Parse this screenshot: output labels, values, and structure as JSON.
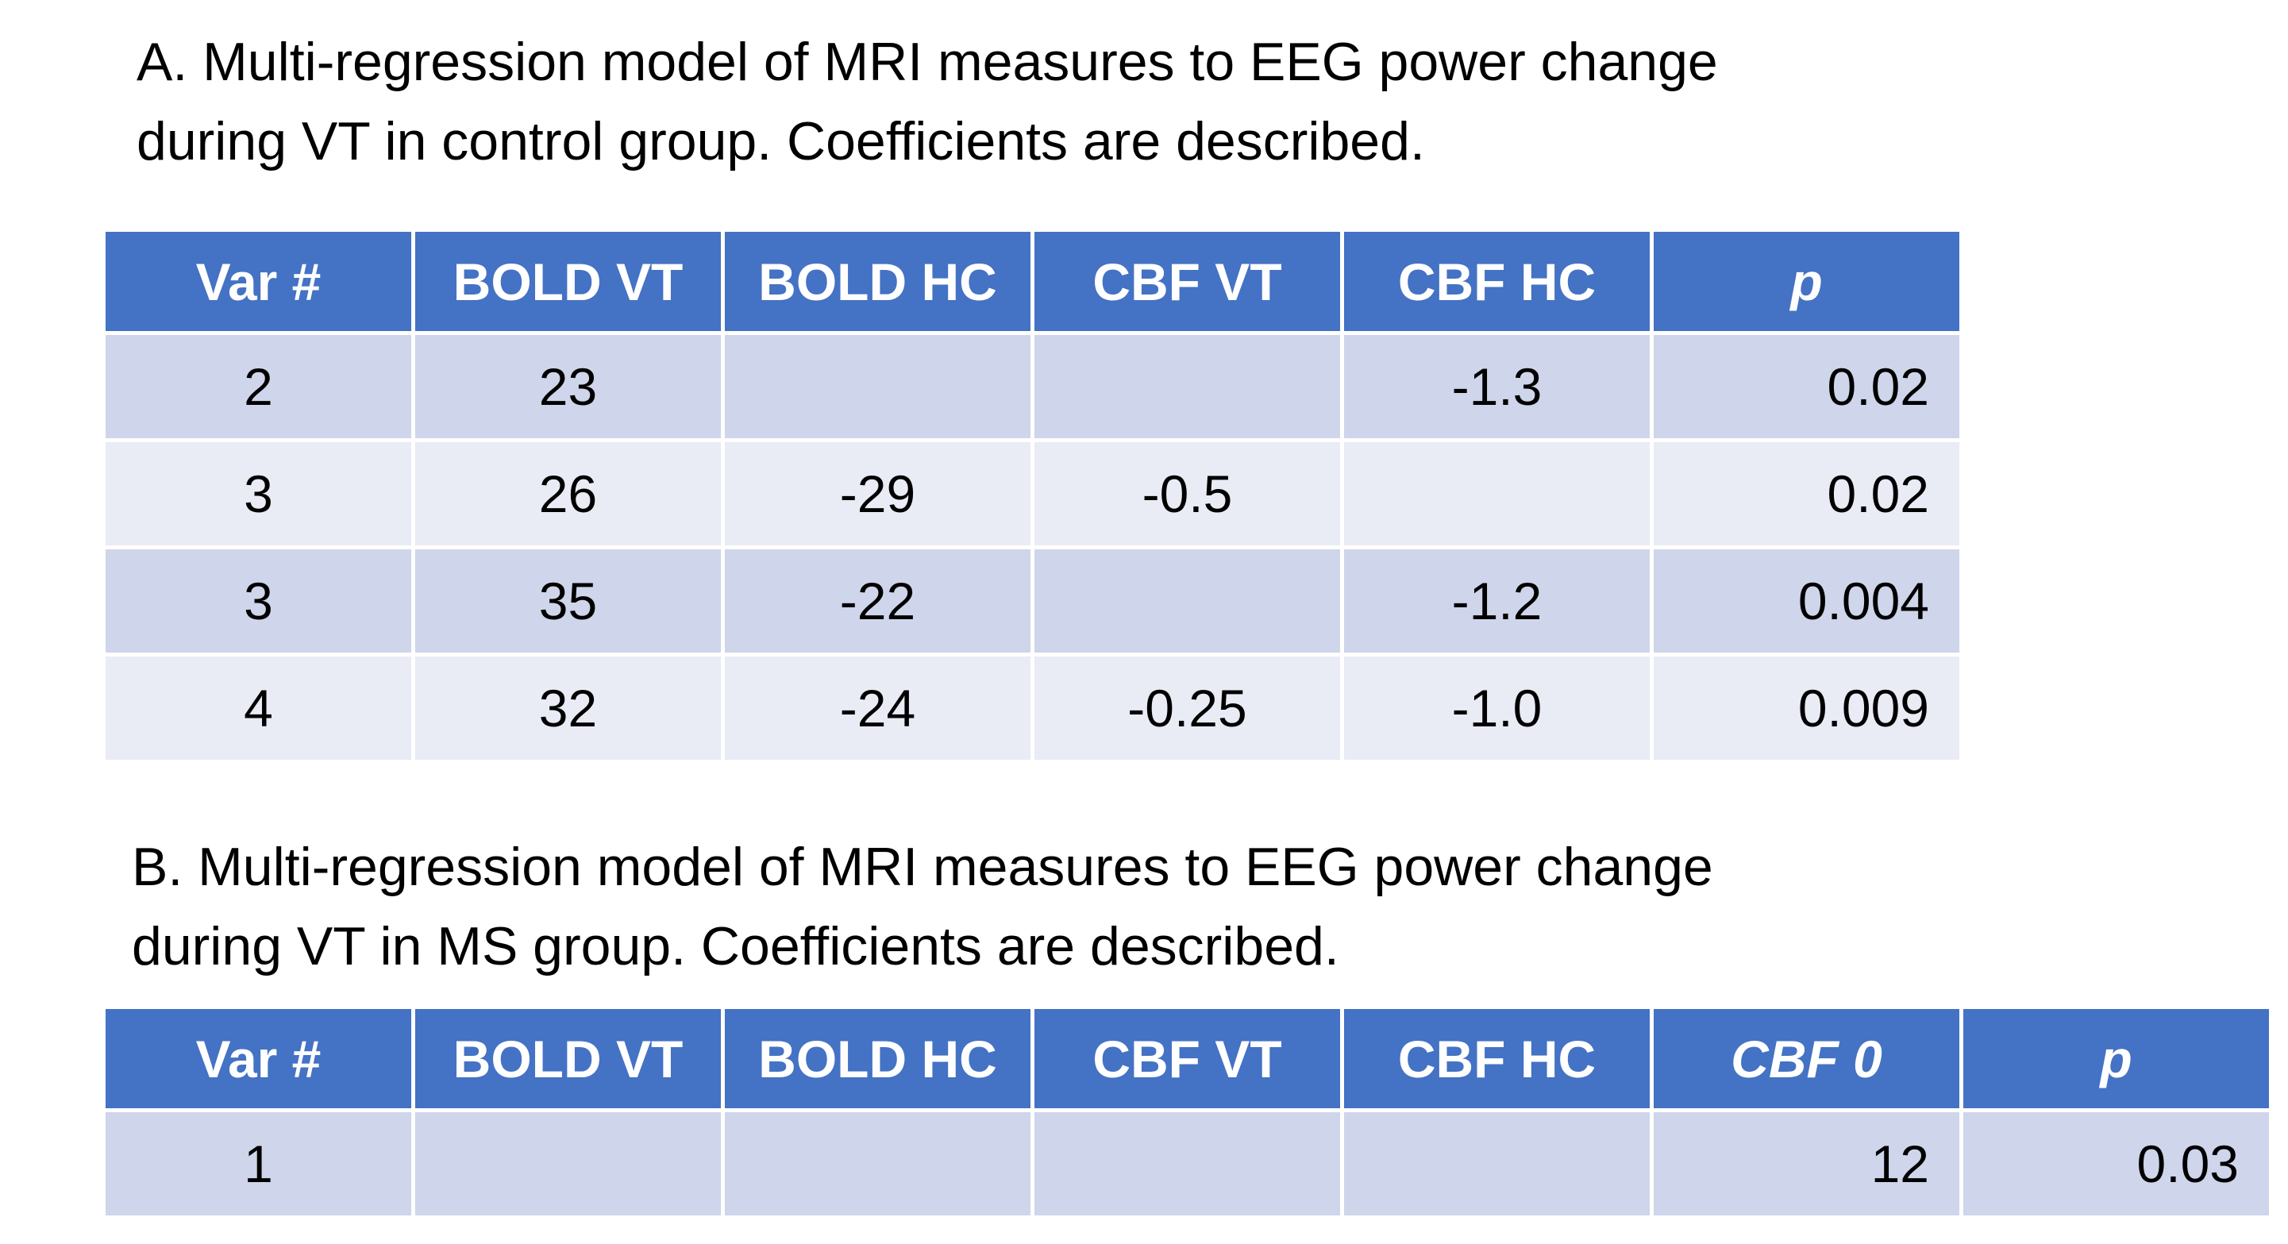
{
  "table_a": {
    "title": [
      "A. Multi-regression model of MRI measures to EEG power change",
      "during VT in control group. Coefficients are described."
    ],
    "header": [
      "Var #",
      "BOLD VT",
      "BOLD HC",
      "CBF VT",
      "CBF HC",
      "p"
    ],
    "rows": [
      [
        "2",
        "23",
        null,
        null,
        "-1.3",
        "0.02"
      ],
      [
        "3",
        "26",
        "-29",
        "-0.5",
        null,
        "0.02"
      ],
      [
        "3",
        "35",
        "-22",
        null,
        "-1.2",
        "0.004"
      ],
      [
        "4",
        "32",
        "-24",
        "-0.25",
        "-1.0",
        "0.009"
      ]
    ]
  },
  "table_b": {
    "title": [
      "B. Multi-regression model of MRI measures to EEG power change",
      "during VT in MS group. Coefficients are described."
    ],
    "header": [
      "Var #",
      "BOLD VT",
      "BOLD HC",
      "CBF VT",
      "CBF HC",
      "CBF 0",
      "p"
    ],
    "rows": [
      [
        "1",
        null,
        null,
        null,
        null,
        "12",
        "0.03"
      ]
    ]
  }
}
